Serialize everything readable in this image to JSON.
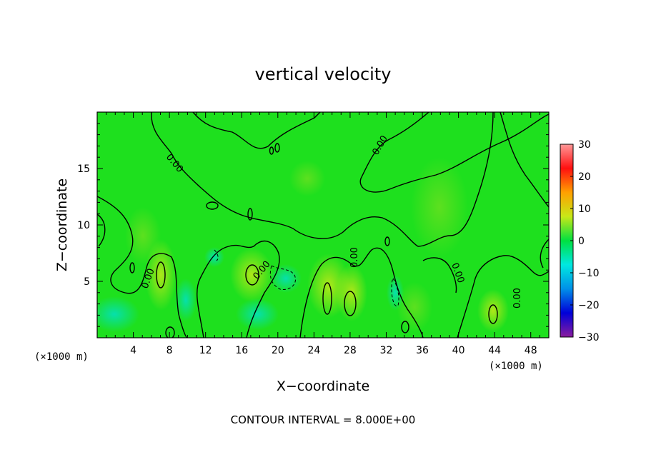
{
  "chart_data": {
    "type": "heatmap",
    "title": "vertical velocity",
    "xlabel": "X−coordinate",
    "ylabel": "Z−coordinate",
    "x_unit": "(×1000 m)",
    "x_unit_right": "(×1000 m)",
    "xlim": [
      0,
      50
    ],
    "ylim": [
      0,
      20
    ],
    "x_ticks": [
      4,
      8,
      12,
      16,
      20,
      24,
      28,
      32,
      36,
      40,
      44,
      48
    ],
    "x_tick_labels": [
      "4",
      "8",
      "12",
      "16",
      "20",
      "24",
      "28",
      "32",
      "36",
      "40",
      "44",
      "48"
    ],
    "y_ticks": [
      5,
      10,
      15
    ],
    "y_tick_labels": [
      "5",
      "10",
      "15"
    ],
    "colorbar": {
      "ticks": [
        30,
        20,
        10,
        0,
        -10,
        -20,
        -30
      ],
      "tick_labels": [
        "30",
        "20",
        "10",
        "0",
        "−10",
        "−20",
        "−30"
      ],
      "range": [
        -30,
        30
      ],
      "colors": [
        "#8a1c9e",
        "#0000d8",
        "#0090e8",
        "#00e8e0",
        "#00e040",
        "#c8e818",
        "#ffa000",
        "#ff1010",
        "#ff9898"
      ]
    },
    "contour_interval_text": "CONTOUR INTERVAL = 8.000E+00",
    "contour_labels": [
      "0.00",
      "0.00",
      "0.00",
      "0.00",
      "0.00",
      "0.00",
      "0.00"
    ],
    "background_value": 0
  }
}
